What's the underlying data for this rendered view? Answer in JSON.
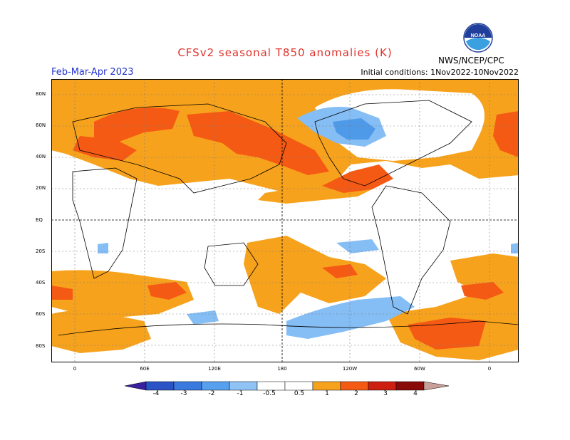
{
  "header": {
    "title": "CFSv2 seasonal T850 anomalies (K)",
    "period": "Feb-Mar-Apr 2023",
    "init": "Initial conditions: 1Nov2022-10Nov2022",
    "org": "NWS/NCEP/CPC",
    "logo_text": "NOAA"
  },
  "axes": {
    "lat_labels": [
      "80N",
      "60N",
      "40N",
      "20N",
      "EQ",
      "20S",
      "40S",
      "60S",
      "80S"
    ],
    "lon_labels": [
      "0",
      "60E",
      "120E",
      "180",
      "120W",
      "60W",
      "0"
    ]
  },
  "colorbar": {
    "labels": [
      "-4",
      "-3",
      "-2",
      "-1",
      "-0.5",
      "0.5",
      "1",
      "2",
      "3",
      "4"
    ],
    "colors": [
      "#3a1f9e",
      "#2b53c6",
      "#3a79de",
      "#56a0ee",
      "#8fc3f5",
      "#ffffff",
      "#f7a21c",
      "#f55a14",
      "#cc1f10",
      "#8a0a0a",
      "#c9a099",
      "#7a5044"
    ]
  },
  "colors": {
    "orange": "#f7a21c",
    "red": "#f55a14",
    "light_blue": "#85bdf5",
    "mid_blue": "#4e9ae8"
  }
}
